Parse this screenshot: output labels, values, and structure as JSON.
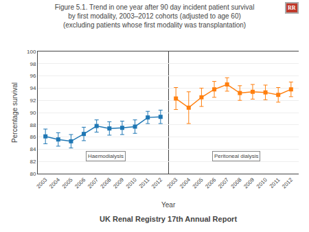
{
  "chart_data": {
    "type": "line",
    "title": "Figure 5.1. Trend in one year after 90 day incident patient survival\nby first modality, 2003–2012 cohorts (adjusted to age 60)\n(excluding patients whose first modality was transplantation)",
    "xlabel": "Year",
    "ylabel": "Percentage survival",
    "x": [
      2003,
      2004,
      2005,
      2006,
      2007,
      2008,
      2009,
      2010,
      2011,
      2012
    ],
    "series": [
      {
        "name": "Haemodialysis",
        "values": [
          86.1,
          85.6,
          85.3,
          86.5,
          87.8,
          87.4,
          87.5,
          87.7,
          89.2,
          89.3
        ],
        "ci_low": [
          84.9,
          84.5,
          84.2,
          85.4,
          86.8,
          86.3,
          86.4,
          86.6,
          88.2,
          88.2
        ],
        "ci_high": [
          87.3,
          86.7,
          86.4,
          87.6,
          88.8,
          88.5,
          88.6,
          88.8,
          90.2,
          90.4
        ]
      },
      {
        "name": "Peritoneal dialysis",
        "values": [
          92.3,
          90.8,
          92.5,
          93.8,
          94.6,
          93.2,
          93.4,
          93.3,
          92.9,
          93.8
        ],
        "ci_low": [
          90.5,
          88.2,
          91.0,
          92.5,
          93.5,
          92.0,
          92.2,
          92.1,
          91.7,
          92.6
        ],
        "ci_high": [
          94.1,
          93.4,
          94.0,
          95.1,
          95.7,
          94.4,
          94.6,
          94.5,
          94.1,
          95.0
        ]
      }
    ],
    "xlim": [
      2002.4,
      2012.6
    ],
    "xticks": [
      2003,
      2004,
      2005,
      2006,
      2007,
      2008,
      2009,
      2010,
      2011,
      2012
    ],
    "ylim": [
      80,
      100
    ],
    "yticks": [
      80,
      82,
      84,
      86,
      88,
      90,
      92,
      94,
      96,
      98,
      100
    ],
    "grid": true,
    "marker": "square",
    "annotations": [
      "UK Renal Registry 17th Annual Report",
      "RR"
    ]
  }
}
